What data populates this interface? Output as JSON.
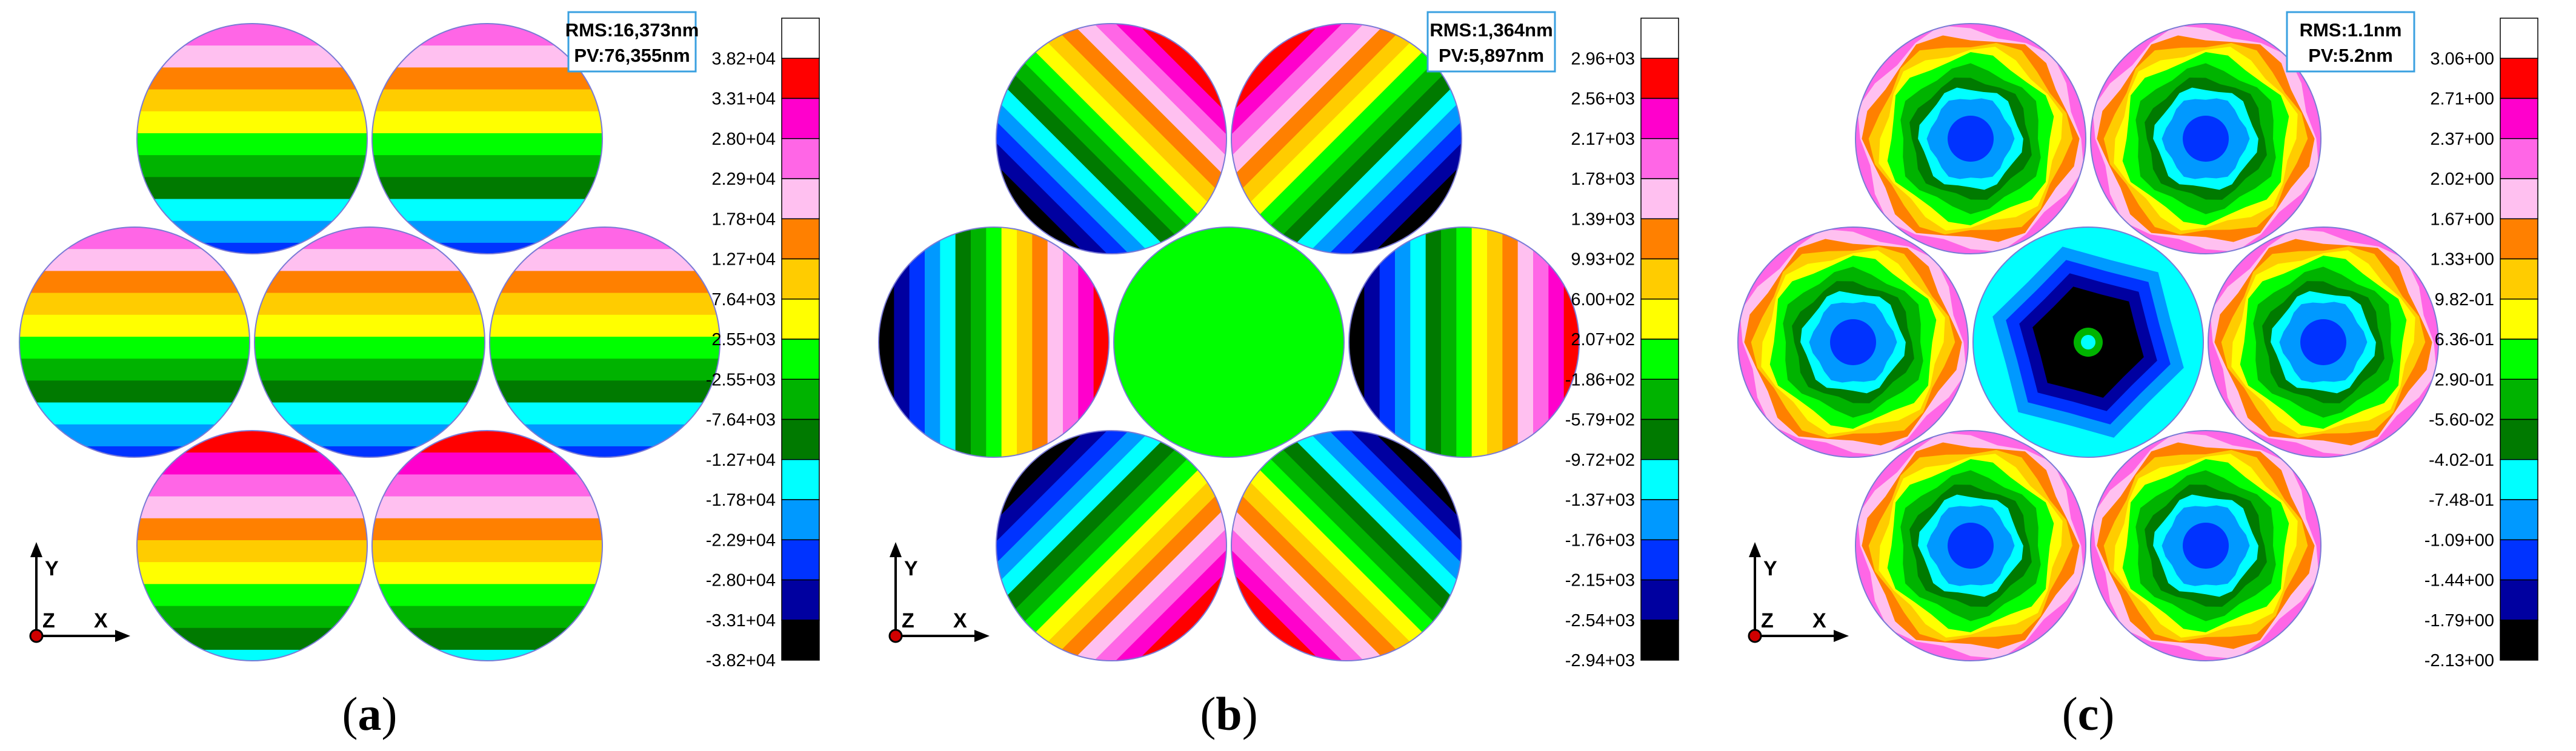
{
  "panels": [
    {
      "id": "a",
      "caption_letter": "a",
      "rms": "RMS:16,373nm",
      "pv": "PV:76,355nm",
      "scale": [
        "3.82+04",
        "3.31+04",
        "2.80+04",
        "2.29+04",
        "1.78+04",
        "1.27+04",
        "7.64+03",
        "2.55+03",
        "-2.55+03",
        "-7.64+03",
        "-1.27+04",
        "-1.78+04",
        "-2.29+04",
        "-2.80+04",
        "-3.31+04",
        "-3.82+04"
      ],
      "pattern": "horizontal"
    },
    {
      "id": "b",
      "caption_letter": "b",
      "rms": "RMS:1,364nm",
      "pv": "PV:5,897nm",
      "scale": [
        "2.96+03",
        "2.56+03",
        "2.17+03",
        "1.78+03",
        "1.39+03",
        "9.93+02",
        "6.00+02",
        "2.07+02",
        "-1.86+02",
        "-5.79+02",
        "-9.72+02",
        "-1.37+03",
        "-1.76+03",
        "-2.15+03",
        "-2.54+03",
        "-2.94+03"
      ],
      "pattern": "tilt"
    },
    {
      "id": "c",
      "caption_letter": "c",
      "rms": "RMS:1.1nm",
      "pv": "PV:5.2nm",
      "scale": [
        "3.06+00",
        "2.71+00",
        "2.37+00",
        "2.02+00",
        "1.67+00",
        "1.33+00",
        "9.82-01",
        "6.36-01",
        "2.90-01",
        "-5.60-02",
        "-4.02-01",
        "-7.48-01",
        "-1.09+00",
        "-1.44+00",
        "-1.79+00",
        "-2.13+00"
      ],
      "pattern": "residual"
    }
  ],
  "axes": {
    "y": "Y",
    "z": "Z",
    "x": "X"
  },
  "colormap": [
    "#ffffff",
    "#ff0000",
    "#ff00cc",
    "#ff66e6",
    "#ffc0f0",
    "#ff8000",
    "#ffcc00",
    "#ffff00",
    "#00ff00",
    "#00b300",
    "#007a00",
    "#00ffff",
    "#0099ff",
    "#0033ff",
    "#0000a0",
    "#000000"
  ]
}
